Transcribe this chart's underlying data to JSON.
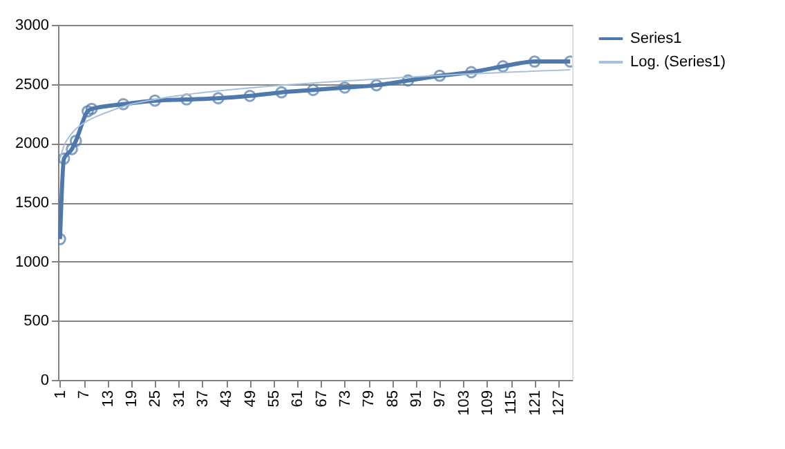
{
  "chart_data": {
    "type": "line",
    "legend": "right",
    "grid": "y",
    "xlim": [
      0.5,
      130.5
    ],
    "xticks": [
      1,
      7,
      13,
      19,
      25,
      31,
      37,
      43,
      49,
      55,
      61,
      67,
      73,
      79,
      85,
      91,
      97,
      103,
      109,
      115,
      121,
      127
    ],
    "ylim": [
      0,
      3000
    ],
    "yticks": [
      0,
      500,
      1000,
      1500,
      2000,
      2500,
      3000
    ],
    "series": [
      {
        "name": "Series1",
        "color": "#4f79ad",
        "marker": "circle",
        "x": [
          1,
          2,
          4,
          5,
          8,
          9,
          17,
          25,
          33,
          41,
          49,
          57,
          65,
          73,
          81,
          89,
          97,
          105,
          113,
          121,
          130
        ],
        "values": [
          1190,
          1870,
          1950,
          2020,
          2270,
          2290,
          2330,
          2360,
          2370,
          2380,
          2400,
          2430,
          2450,
          2470,
          2490,
          2530,
          2570,
          2600,
          2650,
          2690,
          2690
        ]
      },
      {
        "name": "Log. (Series1)",
        "color": "#a8c0dc",
        "type": "line",
        "marker": "none",
        "x": [
          1,
          2,
          3,
          5,
          8,
          12,
          18,
          25,
          35,
          50,
          70,
          95,
          130
        ],
        "values": [
          1870,
          1980,
          2040,
          2120,
          2190,
          2250,
          2320,
          2370,
          2420,
          2470,
          2520,
          2570,
          2620
        ]
      }
    ]
  }
}
